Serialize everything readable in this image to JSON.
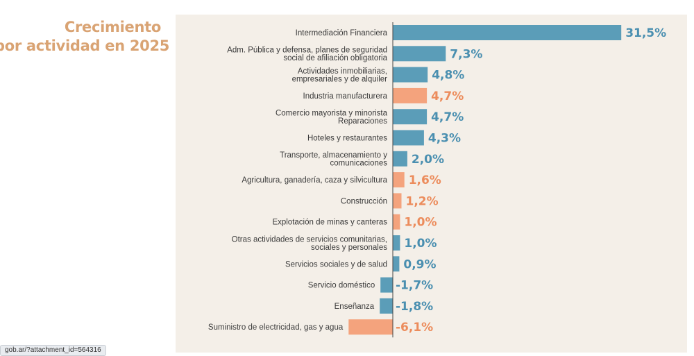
{
  "title_line1": "Crecimiento",
  "title_line2": "por actividad en 2025",
  "url_hint": "gob.ar/?attachment_id=564316",
  "colors": {
    "blue": "#5b9db8",
    "orange": "#f4a37d",
    "blue_text": "#4a8fb0",
    "orange_text": "#ec8c5c",
    "axis": "#444444"
  },
  "chart_data": {
    "type": "bar",
    "orientation": "horizontal",
    "title": "Crecimiento por actividad en 2025",
    "xlim": [
      -6.1,
      31.5
    ],
    "grid": false,
    "items": [
      {
        "label": [
          "Intermediación Financiera"
        ],
        "value": 31.5,
        "value_label": "31,5%",
        "color": "blue"
      },
      {
        "label": [
          "Adm. Pública y defensa, planes de seguridad",
          "social de afiliación obligatoria"
        ],
        "value": 7.3,
        "value_label": "7,3%",
        "color": "blue"
      },
      {
        "label": [
          "Actividades inmobiliarias,",
          "empresariales y de alquiler"
        ],
        "value": 4.8,
        "value_label": "4,8%",
        "color": "blue"
      },
      {
        "label": [
          "Industria manufacturera"
        ],
        "value": 4.7,
        "value_label": "4,7%",
        "color": "orange"
      },
      {
        "label": [
          "Comercio mayorista y minorista",
          "Reparaciones"
        ],
        "value": 4.7,
        "value_label": "4,7%",
        "color": "blue"
      },
      {
        "label": [
          "Hoteles y restaurantes"
        ],
        "value": 4.3,
        "value_label": "4,3%",
        "color": "blue"
      },
      {
        "label": [
          "Transporte, almacenamiento y",
          "comunicaciones"
        ],
        "value": 2.0,
        "value_label": "2,0%",
        "color": "blue"
      },
      {
        "label": [
          "Agricultura, ganadería, caza y silvicultura"
        ],
        "value": 1.6,
        "value_label": "1,6%",
        "color": "orange"
      },
      {
        "label": [
          "Construcción"
        ],
        "value": 1.2,
        "value_label": "1,2%",
        "color": "orange"
      },
      {
        "label": [
          "Explotación de minas y canteras"
        ],
        "value": 1.0,
        "value_label": "1,0%",
        "color": "orange"
      },
      {
        "label": [
          "Otras actividades de servicios comunitarias,",
          "sociales y personales"
        ],
        "value": 1.0,
        "value_label": "1,0%",
        "color": "blue"
      },
      {
        "label": [
          "Servicios sociales y de salud"
        ],
        "value": 0.9,
        "value_label": "0,9%",
        "color": "blue"
      },
      {
        "label": [
          "Servicio doméstico"
        ],
        "value": -1.7,
        "value_label": "-1,7%",
        "color": "blue"
      },
      {
        "label": [
          "Enseñanza"
        ],
        "value": -1.8,
        "value_label": "-1,8%",
        "color": "blue"
      },
      {
        "label": [
          "Suministro de electricidad, gas y agua"
        ],
        "value": -6.1,
        "value_label": "-6,1%",
        "color": "orange"
      }
    ]
  }
}
